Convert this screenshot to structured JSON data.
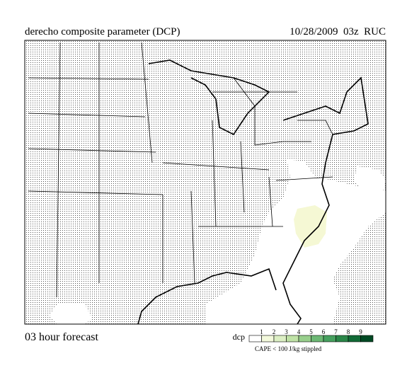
{
  "header": {
    "title": "derecho composite parameter (DCP)",
    "valid": "10/28/2009  03z  RUC"
  },
  "footer": {
    "forecast": "03 hour forecast"
  },
  "legend": {
    "label": "dcp",
    "ticks": [
      1,
      2,
      3,
      4,
      5,
      6,
      7,
      8,
      9
    ],
    "colors": [
      "#ffffff",
      "#f3f9dc",
      "#dcefc4",
      "#bfe2a6",
      "#98cf8c",
      "#6cb874",
      "#46a05e",
      "#2a8648",
      "#116a36",
      "#004a24"
    ],
    "note": "CAPE < 100 J/kg stippled"
  }
}
